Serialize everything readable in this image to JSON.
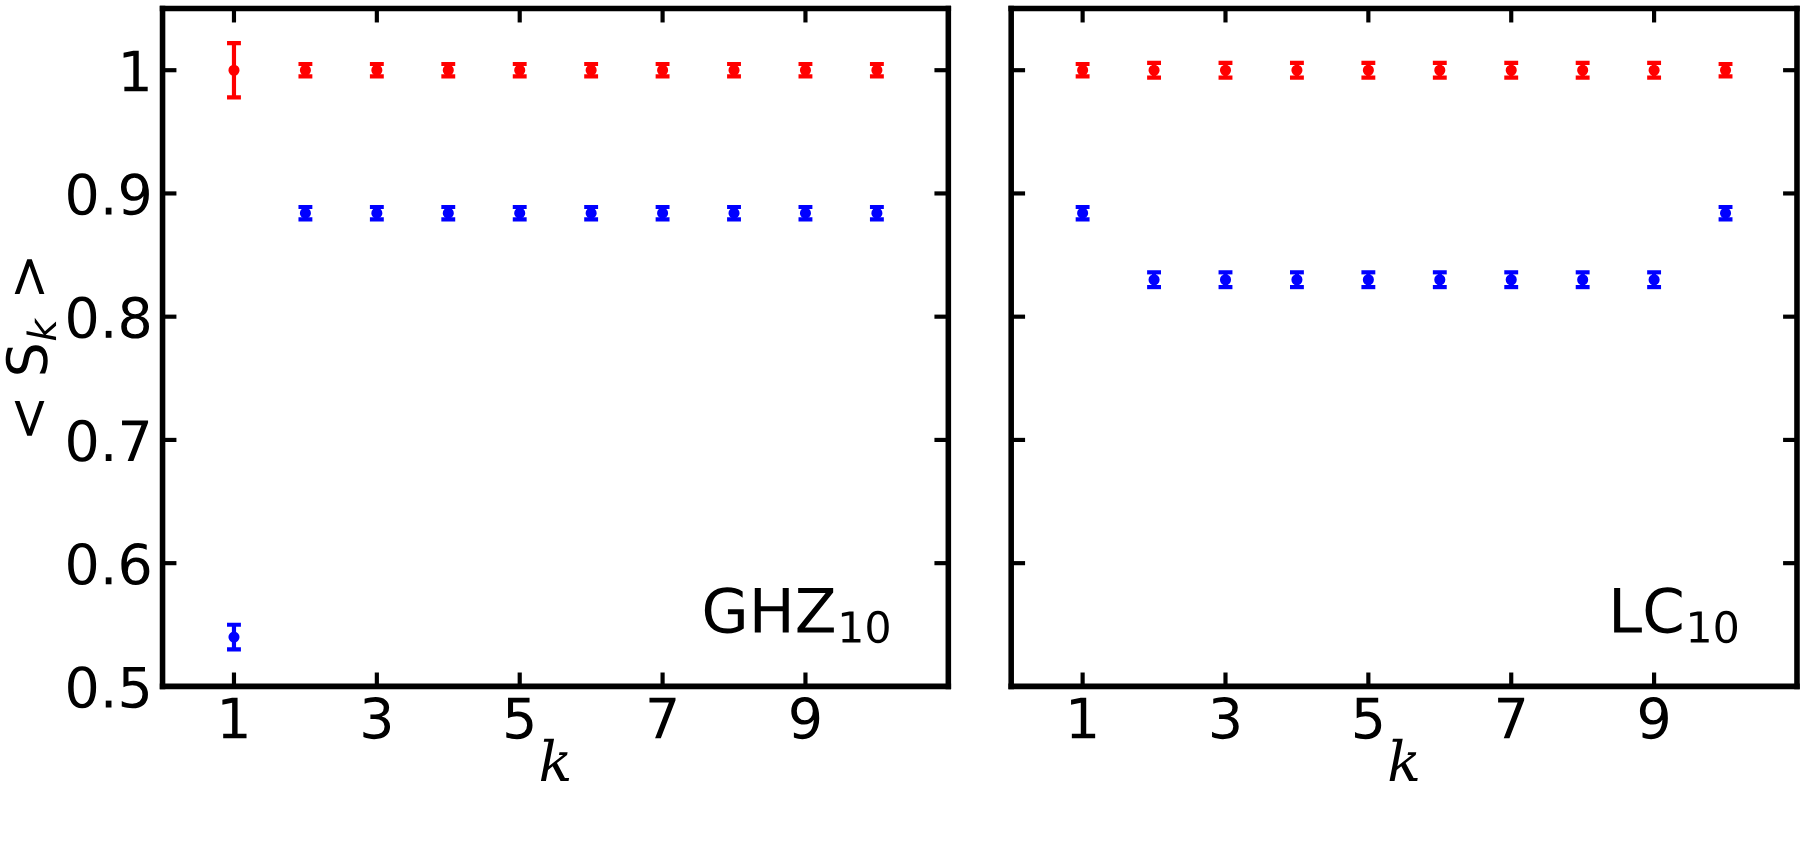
{
  "chart_data": [
    {
      "type": "scatter",
      "x": [
        1,
        2,
        3,
        4,
        5,
        6,
        7,
        8,
        9,
        10
      ],
      "xlabel": "k",
      "ylabel": "< S$_{k}$ >",
      "annotations": [
        "GHZ$_{10}$"
      ],
      "marker": "circle",
      "grid": false,
      "xlim": [
        0,
        11
      ],
      "ylim": [
        0.5,
        1.05
      ],
      "xticks": [
        1,
        3,
        5,
        7,
        9
      ],
      "yticks": [
        0.5,
        0.6,
        0.7,
        0.8,
        0.9,
        1
      ],
      "series": [
        {
          "color": "#ff0000",
          "values": [
            1,
            1,
            1,
            1,
            1,
            1,
            1,
            1,
            1,
            1
          ],
          "errors": [
            0.022,
            0.005,
            0.005,
            0.005,
            0.005,
            0.005,
            0.005,
            0.005,
            0.005,
            0.005
          ]
        },
        {
          "color": "#0000ff",
          "values": [
            0.54,
            0.884,
            0.884,
            0.884,
            0.884,
            0.884,
            0.884,
            0.884,
            0.884,
            0.884
          ],
          "errors": [
            0.01,
            0.005,
            0.005,
            0.005,
            0.005,
            0.005,
            0.005,
            0.005,
            0.005,
            0.005
          ]
        }
      ]
    },
    {
      "type": "scatter",
      "x": [
        1,
        2,
        3,
        4,
        5,
        6,
        7,
        8,
        9,
        10
      ],
      "xlabel": "k",
      "annotations": [
        "LC$_{10}$"
      ],
      "marker": "circle",
      "grid": false,
      "tick_labels": "x",
      "xlim": [
        0,
        11
      ],
      "ylim": [
        0.5,
        1.05
      ],
      "xticks": [
        1,
        3,
        5,
        7,
        9
      ],
      "yticks": [
        0.5,
        0.6,
        0.7,
        0.8,
        0.9,
        1
      ],
      "series": [
        {
          "color": "#ff0000",
          "values": [
            1,
            1,
            1,
            1,
            1,
            1,
            1,
            1,
            1,
            1
          ],
          "errors": [
            0.005,
            0.006,
            0.006,
            0.006,
            0.006,
            0.006,
            0.006,
            0.006,
            0.006,
            0.005
          ]
        },
        {
          "color": "#0000ff",
          "values": [
            0.884,
            0.83,
            0.83,
            0.83,
            0.83,
            0.83,
            0.83,
            0.83,
            0.83,
            0.884
          ],
          "errors": [
            0.005,
            0.006,
            0.006,
            0.006,
            0.006,
            0.006,
            0.006,
            0.006,
            0.006,
            0.005
          ]
        }
      ]
    }
  ]
}
